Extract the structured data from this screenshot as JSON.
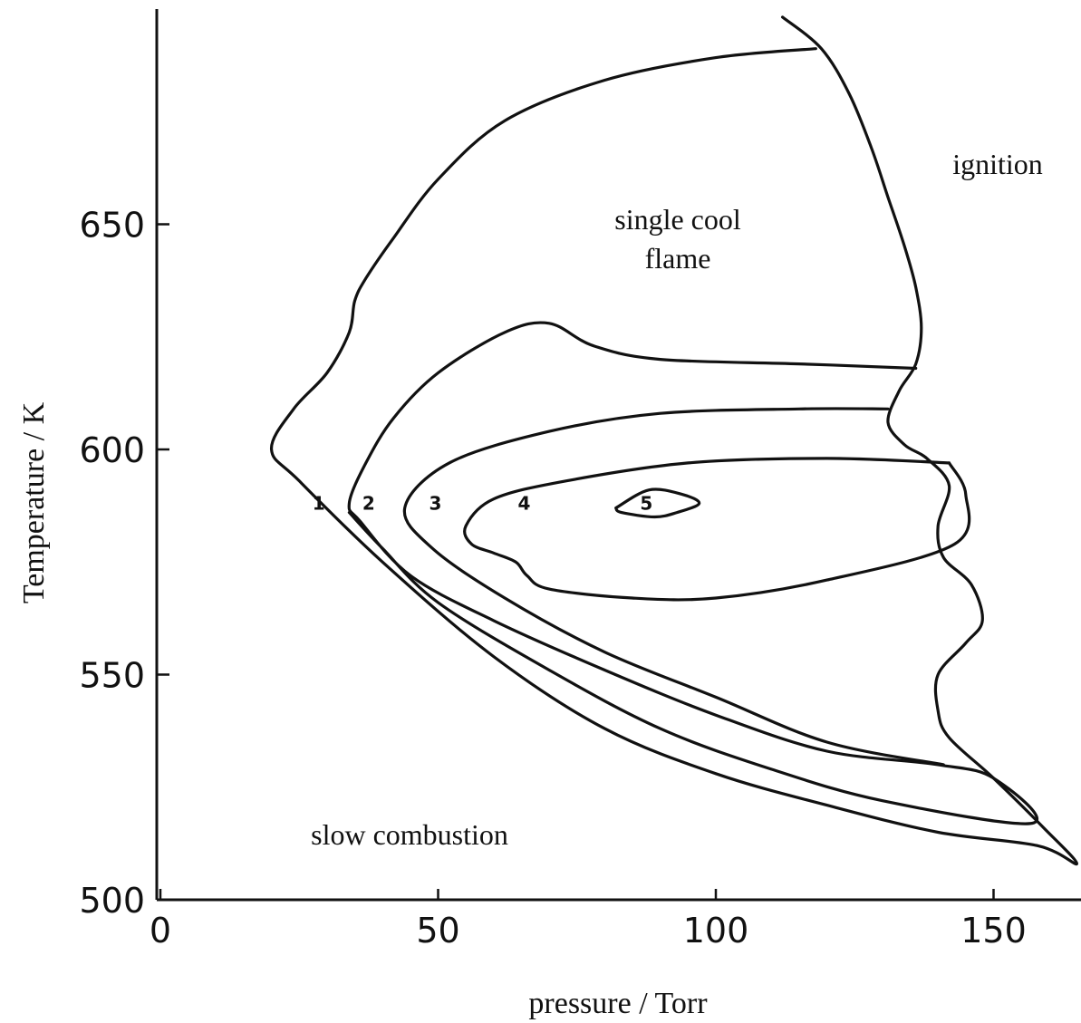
{
  "chart_data": {
    "type": "line",
    "xlabel": "pressure / Torr",
    "ylabel": "Temperature / K",
    "xlim": [
      0,
      170
    ],
    "ylim": [
      500,
      700
    ],
    "x_ticks": [
      0,
      50,
      100,
      150
    ],
    "y_ticks": [
      500,
      550,
      600,
      650
    ],
    "grid": false,
    "region_labels": [
      "slow combustion",
      "ignition",
      "single cool",
      "flame"
    ],
    "lobe_numbers": [
      "1",
      "2",
      "3",
      "4",
      "5"
    ],
    "series": [
      {
        "name": "1",
        "points": [
          [
            112,
            696
          ],
          [
            119,
            689
          ],
          [
            124,
            679
          ],
          [
            128,
            667
          ],
          [
            131,
            656
          ],
          [
            134,
            645
          ],
          [
            136,
            636
          ],
          [
            137,
            627
          ],
          [
            136,
            619
          ],
          [
            133,
            613
          ],
          [
            131,
            606
          ],
          [
            134,
            601
          ],
          [
            138,
            598
          ],
          [
            142,
            592
          ],
          [
            140,
            583
          ],
          [
            141,
            576
          ],
          [
            146,
            570
          ],
          [
            148,
            562
          ],
          [
            145,
            557
          ],
          [
            140,
            550
          ],
          [
            140,
            542
          ],
          [
            142,
            536
          ],
          [
            150,
            527
          ],
          [
            159,
            516
          ],
          [
            165,
            508
          ],
          [
            158,
            512
          ],
          [
            140,
            515
          ],
          [
            120,
            521
          ],
          [
            100,
            528
          ],
          [
            80,
            538
          ],
          [
            60,
            554
          ],
          [
            40,
            575
          ],
          [
            25,
            593
          ],
          [
            20,
            600
          ],
          [
            24,
            609
          ],
          [
            30,
            617
          ],
          [
            34,
            626
          ],
          [
            35,
            633
          ],
          [
            37,
            638
          ],
          [
            42,
            647
          ],
          [
            50,
            660
          ],
          [
            62,
            673
          ],
          [
            80,
            682
          ],
          [
            100,
            687
          ],
          [
            118,
            689
          ]
        ]
      },
      {
        "name": "2",
        "points": [
          [
            136,
            618
          ],
          [
            115,
            619
          ],
          [
            90,
            620
          ],
          [
            78,
            623
          ],
          [
            70,
            628
          ],
          [
            62,
            626
          ],
          [
            50,
            617
          ],
          [
            42,
            607
          ],
          [
            37,
            597
          ],
          [
            34,
            588
          ],
          [
            36,
            584
          ],
          [
            45,
            572
          ],
          [
            60,
            562
          ],
          [
            80,
            551
          ],
          [
            100,
            541
          ],
          [
            120,
            533
          ],
          [
            140,
            530
          ],
          [
            150,
            527
          ],
          [
            157,
            517
          ],
          [
            130,
            522
          ],
          [
            110,
            529
          ],
          [
            90,
            538
          ],
          [
            70,
            551
          ],
          [
            50,
            566
          ],
          [
            40,
            578
          ],
          [
            34,
            586
          ]
        ]
      },
      {
        "name": "3",
        "points": [
          [
            131,
            609
          ],
          [
            115,
            609
          ],
          [
            90,
            608
          ],
          [
            70,
            604
          ],
          [
            52,
            597
          ],
          [
            44,
            587
          ],
          [
            49,
            578
          ],
          [
            62,
            567
          ],
          [
            80,
            555
          ],
          [
            100,
            545
          ],
          [
            120,
            535
          ],
          [
            141,
            530
          ]
        ]
      },
      {
        "name": "4",
        "points": [
          [
            142,
            597
          ],
          [
            120,
            598
          ],
          [
            95,
            597
          ],
          [
            73,
            593
          ],
          [
            60,
            589
          ],
          [
            55,
            583
          ],
          [
            56,
            579
          ],
          [
            60,
            577
          ],
          [
            64,
            575
          ],
          [
            66,
            572
          ],
          [
            70,
            569
          ],
          [
            85,
            567
          ],
          [
            100,
            567
          ],
          [
            120,
            571
          ],
          [
            143,
            579
          ],
          [
            145,
            590
          ],
          [
            142,
            597
          ]
        ]
      },
      {
        "name": "5",
        "points": [
          [
            82,
            587
          ],
          [
            88,
            591
          ],
          [
            94,
            590
          ],
          [
            97,
            588
          ],
          [
            93,
            586
          ],
          [
            89,
            585
          ],
          [
            83,
            586
          ],
          [
            82,
            587
          ]
        ]
      }
    ]
  }
}
